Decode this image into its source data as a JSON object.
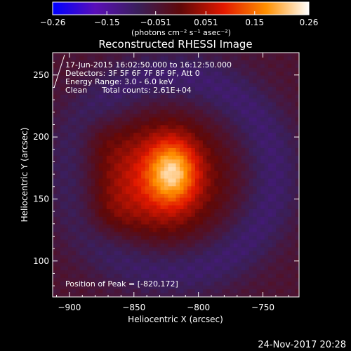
{
  "chart_data": {
    "type": "heatmap",
    "title": "Reconstructed RHESSI Image",
    "xlabel": "Heliocentric X (arcsec)",
    "ylabel": "Heliocentric Y (arcsec)",
    "xlim": [
      -913,
      -722
    ],
    "ylim": [
      71,
      268
    ],
    "x_ticks": [
      -900,
      -850,
      -800,
      -750
    ],
    "y_ticks": [
      100,
      150,
      200,
      250
    ],
    "x_tick_labels": [
      "−900",
      "−850",
      "−800",
      "−750"
    ],
    "y_tick_labels": [
      "100",
      "150",
      "200",
      "250"
    ],
    "grid": false,
    "colorbar": {
      "position": "top",
      "range": [
        -0.26,
        0.26
      ],
      "ticks": [
        -0.26,
        -0.15,
        -0.051,
        0.051,
        0.15,
        0.26
      ],
      "tick_labels": [
        "−0.26",
        "−0.15",
        "−0.051",
        "0.051",
        "0.15",
        "0.26"
      ],
      "unit_label": "(photons cm⁻² s⁻¹ asec⁻²)",
      "colors": [
        "#0000ff",
        "#5a0fb8",
        "#3a1f5a",
        "#600808",
        "#e21800",
        "#ff9000",
        "#ffffff"
      ]
    },
    "annotations": {
      "time_range": "17-Jun-2015 16:02:50.000 to 16:12:50.000",
      "detectors": "Detectors: 3F 5F 6F 7F 8F 9F, Att 0",
      "energy_range": "Energy Range: 3.0 - 6.0 keV",
      "method": "Clean",
      "total_counts": "Total counts: 2.61E+04",
      "peak": "Position of Peak = [-820,172]"
    },
    "peak": {
      "x": -820,
      "y": 172,
      "value": 0.26
    },
    "components": [
      {
        "x": -820,
        "y": 172,
        "sx": 13,
        "sy": 18,
        "amp": 0.17
      },
      {
        "x": -835,
        "y": 165,
        "sx": 35,
        "sy": 32,
        "amp": 0.12
      },
      {
        "x": -878,
        "y": 200,
        "sx": 12,
        "sy": 14,
        "amp": 0.03
      },
      {
        "x": -872,
        "y": 135,
        "sx": 14,
        "sy": 14,
        "amp": 0.03
      }
    ],
    "halo": {
      "x": -820,
      "y": 170,
      "radius": 78,
      "width": 16,
      "amp": -0.06
    },
    "background": -0.045,
    "grid_resolution": 64
  },
  "date_stamp": "24-Nov-2017 20:28"
}
